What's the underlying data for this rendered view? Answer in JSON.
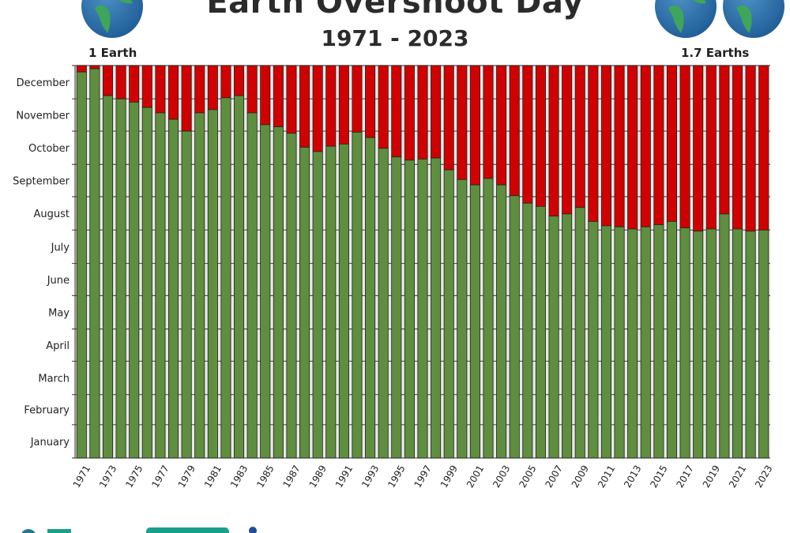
{
  "header": {
    "title": "Earth Overshoot Day",
    "subtitle": "1971 - 2023",
    "left_label": "1 Earth",
    "right_label": "1.7 Earths"
  },
  "icons": [
    "globe-icon"
  ],
  "colors": {
    "before_overshoot": "#5e8e3e",
    "after_overshoot": "#d10000",
    "grid": "#555555"
  },
  "chart_data": {
    "type": "bar",
    "stacked": true,
    "title": "Earth Overshoot Day",
    "subtitle": "1971 - 2023",
    "y_axis": "day of year",
    "y_tick_labels": [
      "January",
      "February",
      "March",
      "April",
      "May",
      "June",
      "July",
      "August",
      "September",
      "October",
      "November",
      "December"
    ],
    "ylim": [
      "01-01",
      "12-31"
    ],
    "grid": true,
    "categories": [
      1971,
      1972,
      1973,
      1974,
      1975,
      1976,
      1977,
      1978,
      1979,
      1980,
      1981,
      1982,
      1983,
      1984,
      1985,
      1986,
      1987,
      1988,
      1989,
      1990,
      1991,
      1992,
      1993,
      1994,
      1995,
      1996,
      1997,
      1998,
      1999,
      2000,
      2001,
      2002,
      2003,
      2004,
      2005,
      2006,
      2007,
      2008,
      2009,
      2010,
      2011,
      2012,
      2013,
      2014,
      2015,
      2016,
      2017,
      2018,
      2019,
      2020,
      2021,
      2022,
      2023
    ],
    "x_tick_labels": [
      "1971",
      "1973",
      "1975",
      "1977",
      "1979",
      "1981",
      "1983",
      "1985",
      "1987",
      "1989",
      "1991",
      "1993",
      "1995",
      "1997",
      "1999",
      "2001",
      "2003",
      "2005",
      "2007",
      "2009",
      "2011",
      "2013",
      "2015",
      "2017",
      "2019",
      "2021",
      "2023"
    ],
    "overshoot_dates": [
      "12-25",
      "12-28",
      "12-03",
      "11-30",
      "11-27",
      "11-22",
      "11-17",
      "11-11",
      "10-31",
      "11-17",
      "11-20",
      "12-01",
      "12-03",
      "11-17",
      "11-06",
      "11-04",
      "10-29",
      "10-16",
      "10-12",
      "10-17",
      "10-19",
      "10-30",
      "10-25",
      "10-15",
      "10-07",
      "10-04",
      "10-05",
      "10-06",
      "09-25",
      "09-16",
      "09-11",
      "09-17",
      "09-11",
      "09-01",
      "08-25",
      "08-22",
      "08-13",
      "08-15",
      "08-21",
      "08-08",
      "08-04",
      "08-03",
      "08-01",
      "08-03",
      "08-05",
      "08-08",
      "08-02",
      "07-30",
      "08-01",
      "08-15",
      "08-01",
      "07-30",
      "07-31"
    ]
  }
}
